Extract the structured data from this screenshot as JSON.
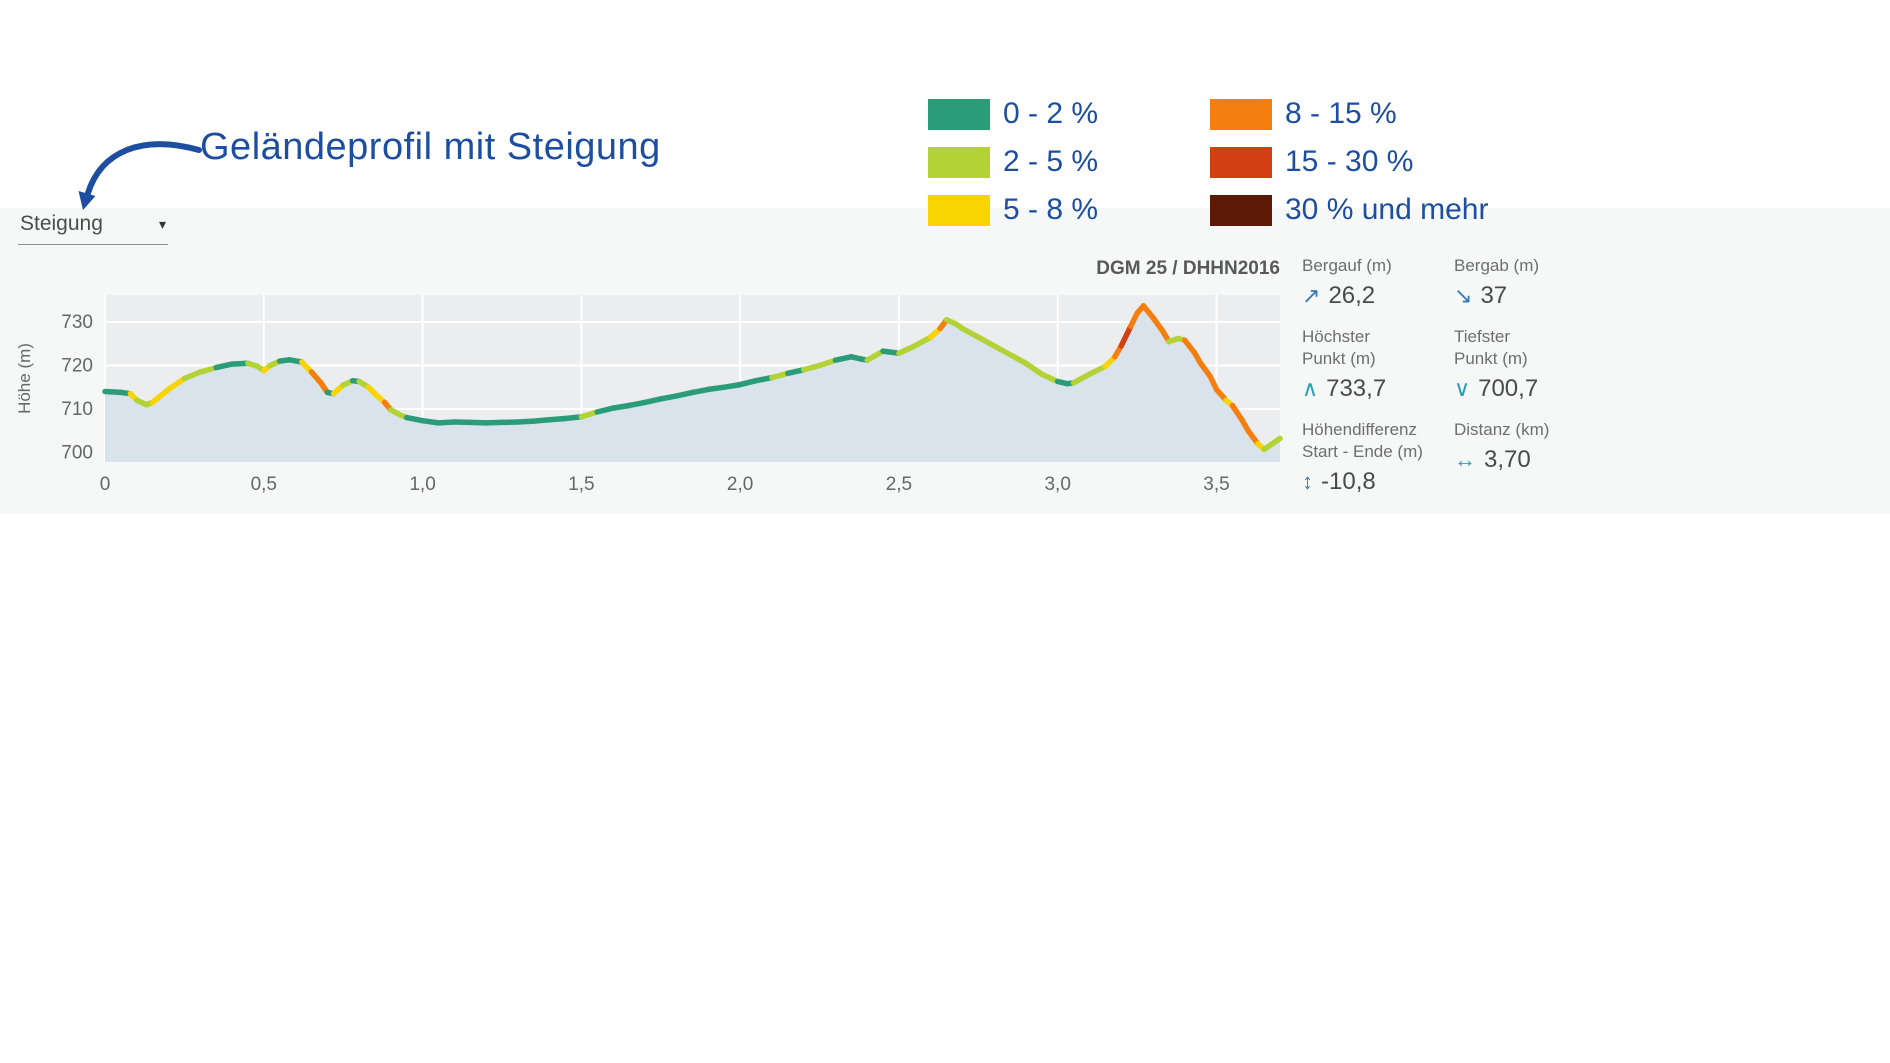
{
  "annotation": {
    "title": "Geländeprofil mit Steigung",
    "color": "#1d4e9f"
  },
  "controls": {
    "gradient_dropdown": {
      "label": "Steigung"
    }
  },
  "source_label": "DGM 25 / DHHN2016",
  "legend": {
    "items": [
      {
        "label": "0 - 2 %",
        "color": "#2a9d78"
      },
      {
        "label": "2 - 5 %",
        "color": "#b2d235"
      },
      {
        "label": "5 - 8 %",
        "color": "#f7d402"
      },
      {
        "label": "8 - 15 %",
        "color": "#f57e0e"
      },
      {
        "label": "15 - 30 %",
        "color": "#d23f12"
      },
      {
        "label": "30 % und mehr",
        "color": "#5c1a06"
      }
    ]
  },
  "stats": [
    {
      "label_line1": "Bergauf (m)",
      "label_line2": "",
      "icon": "↗",
      "icon_color": "#3579b8",
      "value": "26,2"
    },
    {
      "label_line1": "Bergab (m)",
      "label_line2": "",
      "icon": "↘",
      "icon_color": "#3579b8",
      "value": "37"
    },
    {
      "label_line1": "Höchster",
      "label_line2": "Punkt (m)",
      "icon": "∧",
      "icon_color": "#2ba0b0",
      "value": "733,7"
    },
    {
      "label_line1": "Tiefster",
      "label_line2": "Punkt (m)",
      "icon": "∨",
      "icon_color": "#2ba0b0",
      "value": "700,7"
    },
    {
      "label_line1": "Höhendifferenz",
      "label_line2": "Start - Ende (m)",
      "icon": "↕",
      "icon_color": "#3579b8",
      "value": "-10,8"
    },
    {
      "label_line1": "Distanz (km)",
      "label_line2": "",
      "icon": "↔",
      "icon_color": "#2ba0b0",
      "value": "3,70"
    }
  ],
  "chart_data": {
    "type": "area",
    "title": "Geländeprofil mit Steigung",
    "xlabel": "",
    "ylabel": "Höhe (m)",
    "source": "DGM 25 / DHHN2016",
    "grid": true,
    "plot_bg": "#ecedee",
    "area_fill": "#d9e3ec",
    "x_range": [
      0,
      3.7
    ],
    "y_range": [
      697.8,
      736.2
    ],
    "x_ticks": [
      {
        "v": 0,
        "label": "0"
      },
      {
        "v": 0.5,
        "label": "0,5"
      },
      {
        "v": 1.0,
        "label": "1,0"
      },
      {
        "v": 1.5,
        "label": "1,5"
      },
      {
        "v": 2.0,
        "label": "2,0"
      },
      {
        "v": 2.5,
        "label": "2,5"
      },
      {
        "v": 3.0,
        "label": "3,0"
      },
      {
        "v": 3.5,
        "label": "3,5"
      }
    ],
    "y_ticks": [
      {
        "v": 700,
        "label": "700"
      },
      {
        "v": 710,
        "label": "710"
      },
      {
        "v": 720,
        "label": "720"
      },
      {
        "v": 730,
        "label": "730"
      }
    ],
    "slope_classes": {
      "thresholds": [
        2,
        5,
        8,
        15,
        30
      ],
      "labels": [
        "0 - 2 %",
        "2 - 5 %",
        "5 - 8 %",
        "8 - 15 %",
        "15 - 30 %",
        "30 % und mehr"
      ],
      "colors": [
        "#2a9d78",
        "#b2d235",
        "#f7d402",
        "#f57e0e",
        "#d23f12",
        "#5c1a06"
      ]
    },
    "summary": {
      "bergauf_m": "26,2",
      "bergab_m": "37",
      "hoechster_punkt_m": "733,7",
      "tiefster_punkt_m": "700,7",
      "hoehendifferenz_start_ende_m": "-10,8",
      "distanz_km": "3,70"
    },
    "profile": [
      [
        0.0,
        714.0
      ],
      [
        0.05,
        713.8
      ],
      [
        0.08,
        713.5
      ],
      [
        0.1,
        712.0
      ],
      [
        0.13,
        711.0
      ],
      [
        0.15,
        711.5
      ],
      [
        0.2,
        714.5
      ],
      [
        0.25,
        717.0
      ],
      [
        0.3,
        718.5
      ],
      [
        0.35,
        719.5
      ],
      [
        0.4,
        720.3
      ],
      [
        0.45,
        720.5
      ],
      [
        0.48,
        719.8
      ],
      [
        0.5,
        718.8
      ],
      [
        0.52,
        720.0
      ],
      [
        0.55,
        721.0
      ],
      [
        0.58,
        721.3
      ],
      [
        0.62,
        720.8
      ],
      [
        0.65,
        718.5
      ],
      [
        0.68,
        716.0
      ],
      [
        0.7,
        713.8
      ],
      [
        0.72,
        713.5
      ],
      [
        0.75,
        715.5
      ],
      [
        0.78,
        716.5
      ],
      [
        0.8,
        716.3
      ],
      [
        0.83,
        715.0
      ],
      [
        0.85,
        713.5
      ],
      [
        0.88,
        711.5
      ],
      [
        0.9,
        709.8
      ],
      [
        0.93,
        708.6
      ],
      [
        0.95,
        708.0
      ],
      [
        1.0,
        707.3
      ],
      [
        1.05,
        706.8
      ],
      [
        1.1,
        707.0
      ],
      [
        1.15,
        706.9
      ],
      [
        1.2,
        706.8
      ],
      [
        1.25,
        706.9
      ],
      [
        1.3,
        707.0
      ],
      [
        1.35,
        707.2
      ],
      [
        1.4,
        707.5
      ],
      [
        1.45,
        707.8
      ],
      [
        1.5,
        708.2
      ],
      [
        1.55,
        709.3
      ],
      [
        1.6,
        710.2
      ],
      [
        1.65,
        710.8
      ],
      [
        1.7,
        711.5
      ],
      [
        1.75,
        712.3
      ],
      [
        1.8,
        713.0
      ],
      [
        1.85,
        713.8
      ],
      [
        1.9,
        714.5
      ],
      [
        1.95,
        715.0
      ],
      [
        2.0,
        715.6
      ],
      [
        2.05,
        716.5
      ],
      [
        2.1,
        717.2
      ],
      [
        2.15,
        718.2
      ],
      [
        2.2,
        719.0
      ],
      [
        2.25,
        720.0
      ],
      [
        2.3,
        721.2
      ],
      [
        2.35,
        722.0
      ],
      [
        2.38,
        721.5
      ],
      [
        2.4,
        721.2
      ],
      [
        2.45,
        723.3
      ],
      [
        2.48,
        723.0
      ],
      [
        2.5,
        722.8
      ],
      [
        2.55,
        724.5
      ],
      [
        2.6,
        726.5
      ],
      [
        2.63,
        728.5
      ],
      [
        2.65,
        730.5
      ],
      [
        2.68,
        729.5
      ],
      [
        2.7,
        728.5
      ],
      [
        2.75,
        726.5
      ],
      [
        2.8,
        724.5
      ],
      [
        2.85,
        722.5
      ],
      [
        2.9,
        720.5
      ],
      [
        2.95,
        718.0
      ],
      [
        3.0,
        716.3
      ],
      [
        3.03,
        715.8
      ],
      [
        3.05,
        716.0
      ],
      [
        3.1,
        718.0
      ],
      [
        3.15,
        719.8
      ],
      [
        3.18,
        722.0
      ],
      [
        3.2,
        724.5
      ],
      [
        3.23,
        729.0
      ],
      [
        3.25,
        732.0
      ],
      [
        3.27,
        733.7
      ],
      [
        3.3,
        731.0
      ],
      [
        3.33,
        728.0
      ],
      [
        3.35,
        725.5
      ],
      [
        3.38,
        726.2
      ],
      [
        3.4,
        725.8
      ],
      [
        3.43,
        723.0
      ],
      [
        3.45,
        720.5
      ],
      [
        3.48,
        717.5
      ],
      [
        3.5,
        714.5
      ],
      [
        3.53,
        712.0
      ],
      [
        3.55,
        710.8
      ],
      [
        3.58,
        707.5
      ],
      [
        3.6,
        705.0
      ],
      [
        3.63,
        702.0
      ],
      [
        3.65,
        700.7
      ],
      [
        3.68,
        702.2
      ],
      [
        3.7,
        703.2
      ]
    ]
  }
}
